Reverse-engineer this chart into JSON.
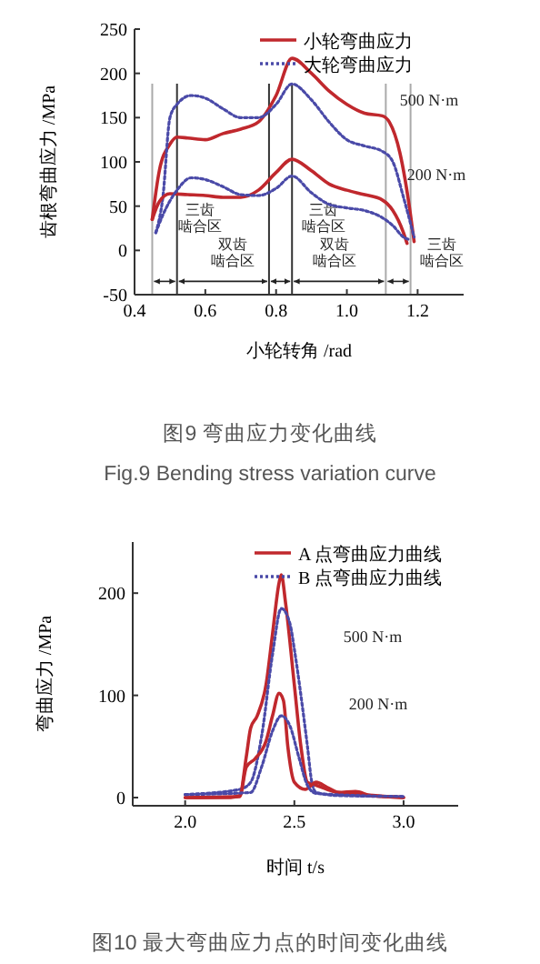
{
  "chart_data": [
    {
      "type": "line",
      "title": "图9 弯曲应力变化曲线",
      "subtitle": "Fig.9 Bending stress variation curve",
      "xlabel": "小轮转角 /rad",
      "ylabel": "齿根弯曲应力 /MPa",
      "xlim": [
        0.4,
        1.33
      ],
      "ylim": [
        -50,
        250
      ],
      "xticks": [
        0.4,
        0.6,
        0.8,
        {
          "value": 1,
          "label": "1.0"
        },
        1.2
      ],
      "yticks": [
        -50,
        0,
        50,
        100,
        150,
        200,
        250
      ],
      "legend": "top right",
      "series": [
        {
          "name": "小轮弯曲应力",
          "color": "#c0282d",
          "line_style": "solid",
          "x": [
            0.45,
            0.47,
            0.5,
            0.52,
            0.55,
            0.6,
            0.65,
            0.7,
            0.75,
            0.8,
            0.845,
            0.9,
            0.95,
            1.0,
            1.05,
            1.1,
            1.12,
            1.15,
            1.18,
            1.19
          ],
          "values": [
            35,
            90,
            120,
            128,
            127,
            125,
            132,
            137,
            145,
            175,
            217,
            200,
            180,
            165,
            155,
            152,
            145,
            110,
            40,
            10
          ]
        },
        {
          "name": "大轮弯曲应力",
          "color": "#4a4aa8",
          "line_style": "dotted",
          "x": [
            0.46,
            0.48,
            0.5,
            0.52,
            0.56,
            0.6,
            0.65,
            0.7,
            0.75,
            0.8,
            0.845,
            0.9,
            0.95,
            1.0,
            1.05,
            1.1,
            1.13,
            1.16,
            1.19
          ],
          "values": [
            20,
            60,
            150,
            165,
            175,
            172,
            160,
            150,
            150,
            165,
            188,
            170,
            145,
            125,
            118,
            112,
            100,
            60,
            15
          ]
        },
        {
          "color": "#c0282d",
          "line_style": "solid",
          "x": [
            0.45,
            0.47,
            0.5,
            0.55,
            0.6,
            0.65,
            0.7,
            0.75,
            0.8,
            0.845,
            0.9,
            0.95,
            1.0,
            1.05,
            1.1,
            1.13,
            1.16,
            1.17
          ],
          "values": [
            35,
            55,
            64,
            63,
            62,
            60,
            60,
            68,
            88,
            103,
            90,
            75,
            68,
            63,
            57,
            45,
            20,
            8
          ]
        },
        {
          "color": "#4a4aa8",
          "line_style": "dotted",
          "x": [
            0.46,
            0.48,
            0.52,
            0.56,
            0.6,
            0.65,
            0.7,
            0.75,
            0.8,
            0.845,
            0.9,
            0.95,
            1.0,
            1.05,
            1.1,
            1.13,
            1.16,
            1.18
          ],
          "values": [
            20,
            40,
            68,
            82,
            80,
            72,
            63,
            62,
            70,
            84,
            65,
            52,
            48,
            45,
            37,
            28,
            15,
            12
          ]
        }
      ],
      "ref_lines": [
        {
          "axis": "x",
          "value": 0.45,
          "color": "#aaaaaa"
        },
        {
          "axis": "x",
          "value": 0.52,
          "color": "#333333"
        },
        {
          "axis": "x",
          "value": 0.78,
          "color": "#333333"
        },
        {
          "axis": "x",
          "value": 0.845,
          "color": "#333333"
        },
        {
          "axis": "x",
          "value": 1.11,
          "color": "#aaaaaa"
        },
        {
          "axis": "x",
          "value": 1.18,
          "color": "#aaaaaa"
        }
      ],
      "annotations": [
        "500 N·m",
        "200 N·m",
        "三齿啮合区",
        "双齿啮合区",
        "三齿啮合区",
        "双齿啮合区",
        "三齿啮合区"
      ]
    },
    {
      "type": "line",
      "title": "图10 最大弯曲应力点的时间变化曲线",
      "xlabel": "时间 t/s",
      "ylabel": "弯曲应力 /MPa",
      "xlim": [
        1.76,
        3.25
      ],
      "ylim": [
        -8,
        250
      ],
      "xticks": [
        {
          "value": 2,
          "label": "2.0"
        },
        2.5,
        {
          "value": 3,
          "label": "3.0"
        }
      ],
      "yticks": [
        0,
        100,
        200
      ],
      "legend": "top right",
      "series": [
        {
          "name": "A 点弯曲应力曲线",
          "color": "#c0282d",
          "line_style": "solid",
          "x": [
            2.0,
            2.2,
            2.25,
            2.28,
            2.3,
            2.33,
            2.37,
            2.4,
            2.43,
            2.44,
            2.46,
            2.5,
            2.53,
            2.56,
            2.6,
            2.65,
            2.7,
            2.78,
            2.85,
            3.0
          ],
          "values": [
            0,
            0,
            2,
            40,
            68,
            80,
            110,
            160,
            210,
            218,
            190,
            110,
            50,
            15,
            12,
            8,
            5,
            6,
            2,
            0
          ]
        },
        {
          "name": "B 点弯曲应力曲线",
          "color": "#4a4aa8",
          "line_style": "dotted",
          "x": [
            2.0,
            2.25,
            2.3,
            2.35,
            2.4,
            2.44,
            2.48,
            2.5,
            2.53,
            2.56,
            2.58,
            2.6,
            2.7,
            3.0
          ],
          "values": [
            3,
            8,
            15,
            60,
            140,
            185,
            170,
            145,
            100,
            50,
            15,
            5,
            2,
            1
          ]
        },
        {
          "color": "#c0282d",
          "line_style": "solid",
          "x": [
            2.0,
            2.25,
            2.28,
            2.32,
            2.37,
            2.4,
            2.43,
            2.45,
            2.47,
            2.5,
            2.55,
            2.6,
            2.65,
            2.7,
            2.8,
            3.0
          ],
          "values": [
            0,
            1,
            30,
            38,
            55,
            80,
            102,
            95,
            50,
            15,
            8,
            15,
            10,
            5,
            3,
            0
          ]
        },
        {
          "color": "#4a4aa8",
          "line_style": "dotted",
          "x": [
            2.0,
            2.3,
            2.35,
            2.4,
            2.44,
            2.48,
            2.52,
            2.56,
            2.6,
            3.0
          ],
          "values": [
            3,
            5,
            30,
            65,
            80,
            70,
            40,
            12,
            4,
            1
          ]
        }
      ],
      "annotations": [
        "500 N·m",
        "200 N·m"
      ]
    }
  ]
}
